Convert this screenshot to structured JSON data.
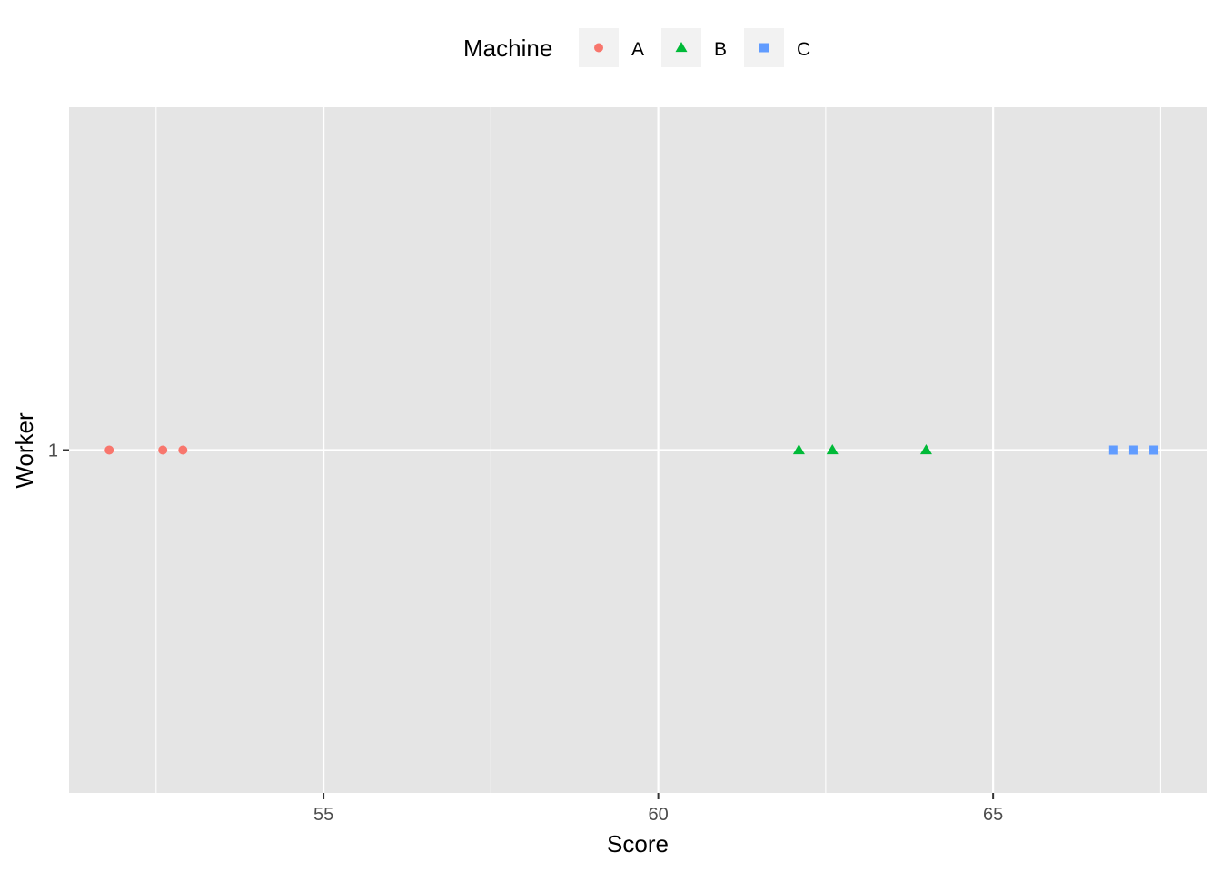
{
  "chart_data": {
    "type": "scatter",
    "title": "",
    "xlabel": "Score",
    "ylabel": "Worker",
    "xlim": [
      51.2,
      68.2
    ],
    "x_ticks": [
      55,
      60,
      65
    ],
    "x_minor": [
      52.5,
      57.5,
      62.5,
      67.5
    ],
    "y_categories": [
      "1"
    ],
    "grid": true,
    "legend": {
      "title": "Machine",
      "position": "top",
      "entries": [
        "A",
        "B",
        "C"
      ]
    },
    "series": [
      {
        "name": "A",
        "shape": "circle",
        "color": "#F8766D",
        "x": [
          51.8,
          52.6,
          52.9
        ],
        "y": [
          "1",
          "1",
          "1"
        ]
      },
      {
        "name": "B",
        "shape": "triangle",
        "color": "#00BA38",
        "x": [
          62.1,
          62.6,
          64.0
        ],
        "y": [
          "1",
          "1",
          "1"
        ]
      },
      {
        "name": "C",
        "shape": "square",
        "color": "#619CFF",
        "x": [
          66.8,
          67.1,
          67.4
        ],
        "y": [
          "1",
          "1",
          "1"
        ]
      }
    ],
    "panel_background": "#E5E5E5",
    "grid_color": "#FFFFFF",
    "legend_key_background": "#F2F2F2"
  }
}
